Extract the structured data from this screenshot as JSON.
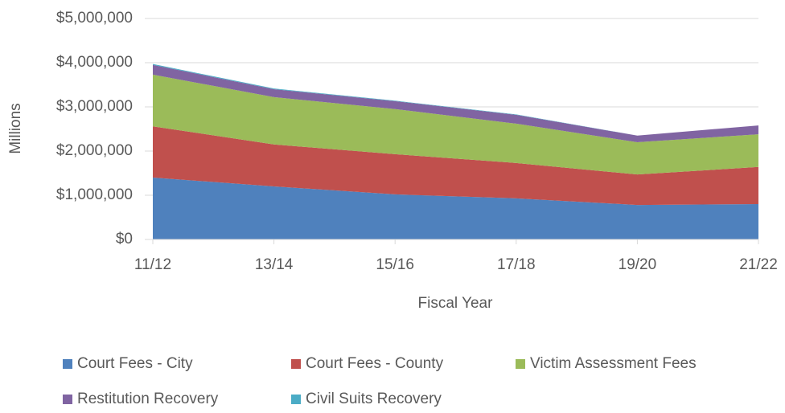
{
  "chart_data": {
    "type": "area",
    "categories": [
      "11/12",
      "13/14",
      "15/16",
      "17/18",
      "19/20",
      "21/22"
    ],
    "xlabel": "Fiscal Year",
    "ylabel": "Millions",
    "ylim": [
      0,
      5000000
    ],
    "yticks": [
      {
        "value": 0,
        "label": "$0"
      },
      {
        "value": 1000000,
        "label": "$1,000,000"
      },
      {
        "value": 2000000,
        "label": "$2,000,000"
      },
      {
        "value": 3000000,
        "label": "$3,000,000"
      },
      {
        "value": 4000000,
        "label": "$4,000,000"
      },
      {
        "value": 5000000,
        "label": "$5,000,000"
      }
    ],
    "grid": true,
    "stacked": true,
    "legend": "bottom",
    "series": [
      {
        "name": "Court Fees - City",
        "color": "#4f81bd",
        "values": [
          1400000,
          1200000,
          1020000,
          930000,
          780000,
          800000
        ]
      },
      {
        "name": "Court Fees - County",
        "color": "#c0504d",
        "values": [
          1160000,
          950000,
          910000,
          800000,
          690000,
          840000
        ]
      },
      {
        "name": "Victim Assessment Fees",
        "color": "#9bbb59",
        "values": [
          1170000,
          1070000,
          1020000,
          890000,
          730000,
          740000
        ]
      },
      {
        "name": "Restitution Recovery",
        "color": "#8064a2",
        "values": [
          220000,
          180000,
          180000,
          200000,
          150000,
          200000
        ]
      },
      {
        "name": "Civil Suits Recovery",
        "color": "#4bacc6",
        "values": [
          20000,
          15000,
          10000,
          10000,
          0,
          0
        ]
      }
    ]
  }
}
